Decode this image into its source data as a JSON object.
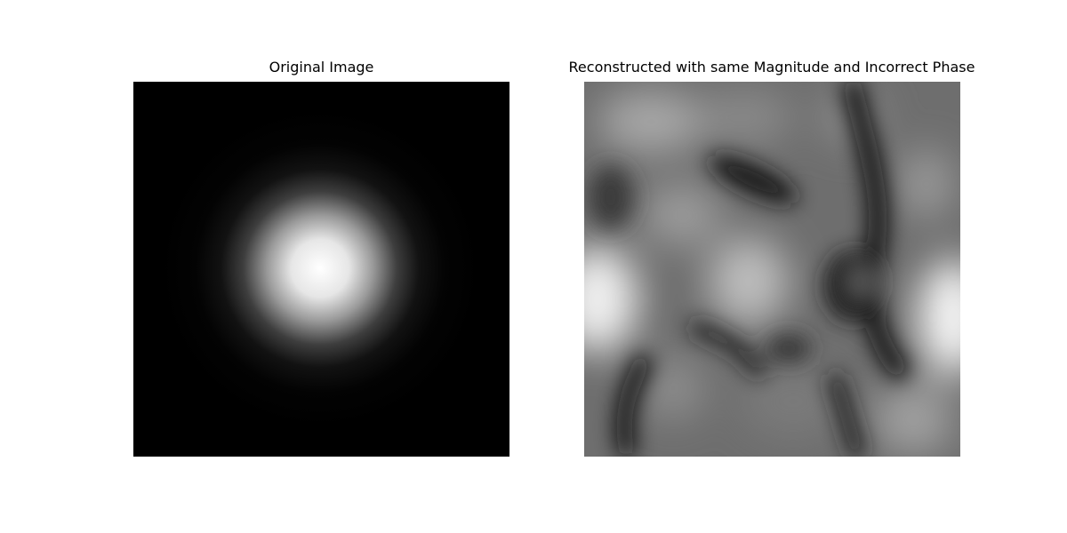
{
  "figure": {
    "panels": [
      {
        "title": "Original Image",
        "content": "gaussian-blob"
      },
      {
        "title": "Reconstructed with same Magnitude and Incorrect Phase",
        "content": "phase-scrambled-noise"
      }
    ],
    "colormap": "gray",
    "axes_visible": false
  }
}
